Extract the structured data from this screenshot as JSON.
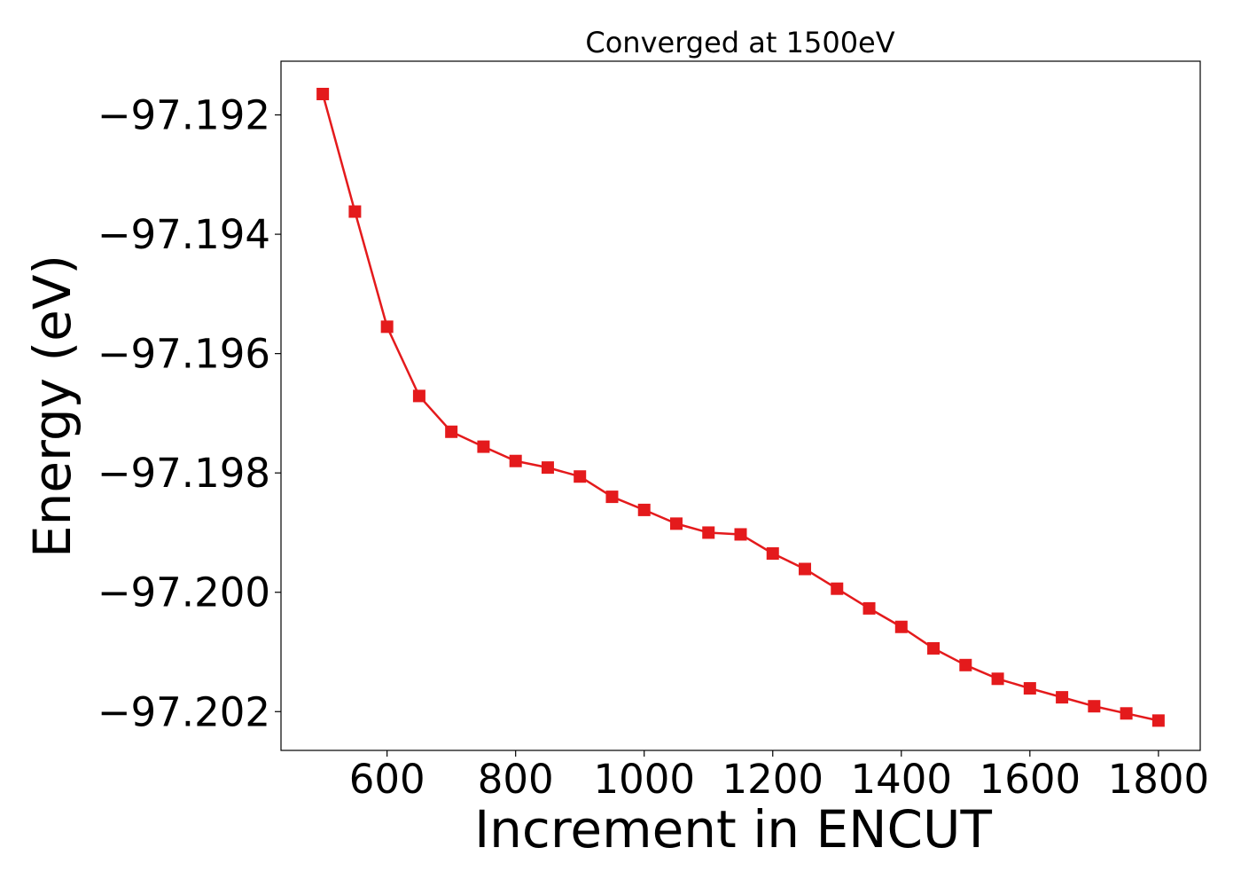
{
  "chart_data": {
    "type": "line",
    "title": "Converged at 1500eV",
    "xlabel": "Increment in ENCUT",
    "ylabel": "Energy (eV)",
    "xlim": [
      435,
      1865
    ],
    "ylim": [
      -97.20265,
      -97.1911
    ],
    "xticks": [
      600,
      800,
      1000,
      1200,
      1400,
      1600,
      1800
    ],
    "yticks": [
      -97.192,
      -97.194,
      -97.196,
      -97.198,
      -97.2,
      -97.202
    ],
    "ytick_labels": [
      "−97.192",
      "−97.194",
      "−97.196",
      "−97.198",
      "−97.200",
      "−97.202"
    ],
    "grid": false,
    "series": [
      {
        "color": "#e41a1c",
        "marker": "square",
        "x": [
          500,
          550,
          600,
          650,
          700,
          750,
          800,
          850,
          900,
          950,
          1000,
          1050,
          1100,
          1150,
          1200,
          1250,
          1300,
          1350,
          1400,
          1450,
          1500,
          1550,
          1600,
          1650,
          1700,
          1750,
          1800
        ],
        "y": [
          -97.19165,
          -97.19362,
          -97.19555,
          -97.19671,
          -97.19731,
          -97.19756,
          -97.1978,
          -97.19791,
          -97.19806,
          -97.1984,
          -97.19862,
          -97.19885,
          -97.199,
          -97.19903,
          -97.19935,
          -97.19961,
          -97.19994,
          -97.20027,
          -97.20058,
          -97.20094,
          -97.20122,
          -97.20145,
          -97.20161,
          -97.20176,
          -97.20191,
          -97.20203,
          -97.20215
        ]
      }
    ]
  }
}
